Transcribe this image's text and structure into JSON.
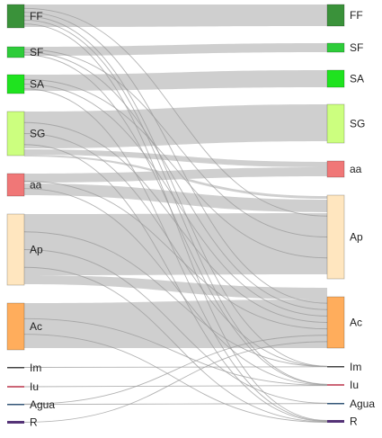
{
  "chart_data": {
    "type": "sankey",
    "source_nodes": [
      {
        "label": "FF",
        "color": "#3a923a"
      },
      {
        "label": "SF",
        "color": "#2ecc3a"
      },
      {
        "label": "SA",
        "color": "#1fe31f"
      },
      {
        "label": "SG",
        "color": "#ccff7f"
      },
      {
        "label": "aa",
        "color": "#f07777"
      },
      {
        "label": "Ap",
        "color": "#ffe6bf"
      },
      {
        "label": "Ac",
        "color": "#ffad5c"
      },
      {
        "label": "Im",
        "color": "#444444"
      },
      {
        "label": "Iu",
        "color": "#cc6677"
      },
      {
        "label": "Agua",
        "color": "#335577"
      },
      {
        "label": "R",
        "color": "#553377"
      }
    ],
    "target_nodes": [
      {
        "label": "FF",
        "color": "#3a923a"
      },
      {
        "label": "SF",
        "color": "#2ecc3a"
      },
      {
        "label": "SA",
        "color": "#1fe31f"
      },
      {
        "label": "SG",
        "color": "#ccff7f"
      },
      {
        "label": "aa",
        "color": "#f07777"
      },
      {
        "label": "Ap",
        "color": "#ffe6bf"
      },
      {
        "label": "Ac",
        "color": "#ffad5c"
      },
      {
        "label": "Im",
        "color": "#444444"
      },
      {
        "label": "Iu",
        "color": "#cc6677"
      },
      {
        "label": "Agua",
        "color": "#335577"
      },
      {
        "label": "R",
        "color": "#553377"
      }
    ],
    "major_flows": [
      {
        "source": "FF",
        "target": "FF"
      },
      {
        "source": "SF",
        "target": "SF"
      },
      {
        "source": "SA",
        "target": "SA"
      },
      {
        "source": "SG",
        "target": "SG"
      },
      {
        "source": "SG",
        "target": "aa"
      },
      {
        "source": "SG",
        "target": "Ap"
      },
      {
        "source": "aa",
        "target": "aa"
      },
      {
        "source": "aa",
        "target": "Ap"
      },
      {
        "source": "Ap",
        "target": "Ap"
      },
      {
        "source": "Ap",
        "target": "Ac"
      },
      {
        "source": "Ac",
        "target": "Ac"
      }
    ],
    "minor_flows": [
      {
        "source": "FF",
        "target": "Ap"
      },
      {
        "source": "FF",
        "target": "Ac"
      },
      {
        "source": "FF",
        "target": "Im"
      },
      {
        "source": "FF",
        "target": "Iu"
      },
      {
        "source": "FF",
        "target": "R"
      },
      {
        "source": "SF",
        "target": "Ap"
      },
      {
        "source": "SF",
        "target": "Ac"
      },
      {
        "source": "SF",
        "target": "Iu"
      },
      {
        "source": "SA",
        "target": "Ap"
      },
      {
        "source": "SA",
        "target": "Ac"
      },
      {
        "source": "SA",
        "target": "R"
      },
      {
        "source": "SG",
        "target": "Ac"
      },
      {
        "source": "SG",
        "target": "Im"
      },
      {
        "source": "SG",
        "target": "R"
      },
      {
        "source": "aa",
        "target": "Ac"
      },
      {
        "source": "aa",
        "target": "Iu"
      },
      {
        "source": "Ap",
        "target": "Im"
      },
      {
        "source": "Ap",
        "target": "Agua"
      },
      {
        "source": "Ap",
        "target": "R"
      },
      {
        "source": "Ac",
        "target": "Iu"
      },
      {
        "source": "Ac",
        "target": "R"
      },
      {
        "source": "Im",
        "target": "Im"
      },
      {
        "source": "Iu",
        "target": "Iu"
      },
      {
        "source": "Agua",
        "target": "Ac"
      },
      {
        "source": "Agua",
        "target": "Agua"
      },
      {
        "source": "R",
        "target": "Ac"
      }
    ]
  }
}
